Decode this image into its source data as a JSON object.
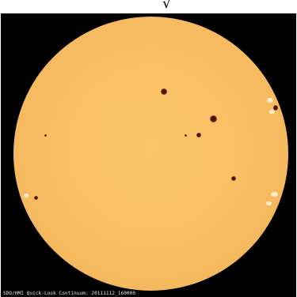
{
  "image": {
    "top_text_fragment": "√",
    "caption": "SDO/HMI Quick-Look Continuum: 20111112_160000"
  }
}
